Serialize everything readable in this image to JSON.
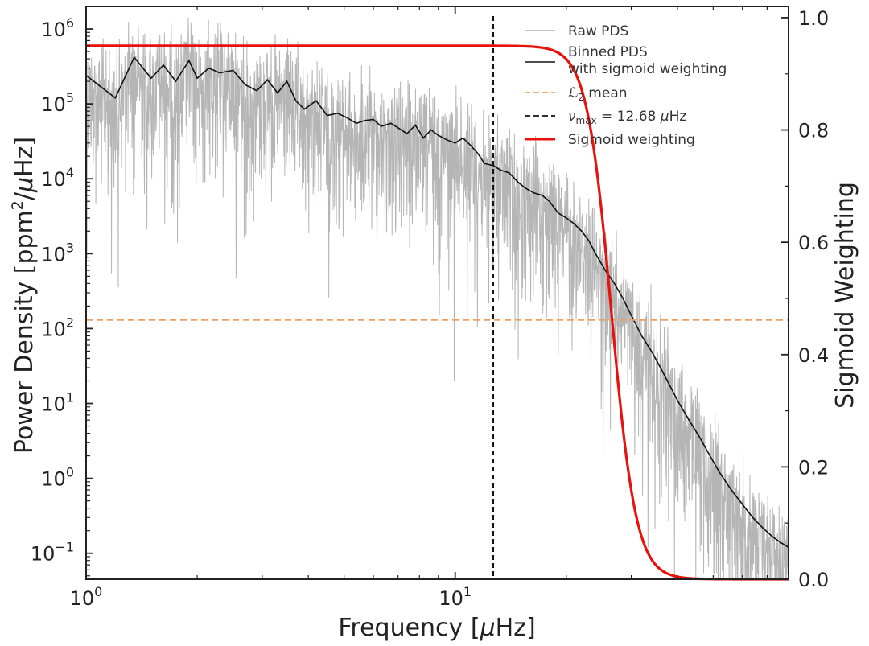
{
  "chart_data": {
    "type": "line",
    "xscale": "log",
    "yscale": "log",
    "xlabel_pre": "Frequency [",
    "mu": "μ",
    "xlabel_post": "Hz]",
    "ylabel_pre": "Power Density [ppm",
    "ylabel_sup": "2",
    "ylabel_mid": "/",
    "ylabel_post": "Hz]",
    "y2label": "Sigmoid Weighting",
    "xlim": [
      1,
      80
    ],
    "ylim": [
      0.045,
      2000000
    ],
    "y2lim": [
      0,
      1.02
    ],
    "xticks": [
      {
        "value": 1,
        "base": "10",
        "exp": "0"
      },
      {
        "value": 10,
        "base": "10",
        "exp": "1"
      }
    ],
    "yticks": [
      {
        "value": 0.1,
        "base": "10",
        "exp": "−1"
      },
      {
        "value": 1,
        "base": "10",
        "exp": "0"
      },
      {
        "value": 10,
        "base": "10",
        "exp": "1"
      },
      {
        "value": 100,
        "base": "10",
        "exp": "2"
      },
      {
        "value": 1000,
        "base": "10",
        "exp": "3"
      },
      {
        "value": 10000,
        "base": "10",
        "exp": "4"
      },
      {
        "value": 100000,
        "base": "10",
        "exp": "5"
      },
      {
        "value": 1000000,
        "base": "10",
        "exp": "6"
      }
    ],
    "y2ticks": [
      "0.0",
      "0.2",
      "0.4",
      "0.6",
      "0.8",
      "1.0"
    ],
    "l2_mean": 130,
    "numax": 12.68,
    "sigmoid": {
      "max": 0.95,
      "midpoint": 26.5,
      "steepness": 13
    },
    "binned_pds": {
      "x": [
        1.0,
        1.2,
        1.35,
        1.5,
        1.62,
        1.75,
        1.9,
        2.0,
        2.15,
        2.3,
        2.5,
        2.7,
        2.9,
        3.1,
        3.3,
        3.5,
        3.7,
        3.9,
        4.2,
        4.5,
        4.8,
        5.1,
        5.4,
        5.7,
        6.0,
        6.3,
        6.7,
        7.0,
        7.4,
        7.8,
        8.2,
        8.6,
        9.0,
        9.5,
        10.0,
        10.5,
        11.0,
        11.5,
        12.0,
        12.68,
        13.3,
        14.0,
        14.8,
        15.5,
        16.3,
        17.2,
        18.0,
        19.0,
        20.0,
        21.0,
        22.0,
        23.0,
        24.0,
        25.5,
        27.0,
        28.5,
        30.0,
        32.0,
        34.0,
        36.0,
        38.0,
        40.0,
        43.0,
        46.0,
        49.0,
        52.0,
        56.0,
        60.0,
        64.0,
        68.0,
        72.0,
        76.0,
        80.0
      ],
      "y": [
        240000,
        120000,
        420000,
        220000,
        330000,
        200000,
        380000,
        220000,
        300000,
        260000,
        280000,
        180000,
        150000,
        210000,
        140000,
        200000,
        110000,
        85000,
        110000,
        70000,
        75000,
        65000,
        55000,
        60000,
        62000,
        50000,
        55000,
        48000,
        40000,
        52000,
        35000,
        45000,
        38000,
        33000,
        30000,
        35000,
        28000,
        22000,
        16000,
        15000,
        13000,
        12000,
        9000,
        7500,
        6500,
        6000,
        5000,
        3500,
        3000,
        2500,
        2000,
        1500,
        1000,
        600,
        400,
        250,
        150,
        80,
        50,
        30,
        18,
        11,
        6,
        3.5,
        2.0,
        1.2,
        0.7,
        0.45,
        0.3,
        0.22,
        0.17,
        0.14,
        0.12
      ]
    },
    "legend": [
      {
        "label": "Raw PDS",
        "color": "#b5b5b5",
        "style": "solid"
      },
      {
        "label": "Binned PDS",
        "label2": "with sigmoid weighting",
        "color": "#111111",
        "style": "solid"
      },
      {
        "label_sym": "ℒ",
        "label_sub": "2",
        "label_rest": " mean",
        "color": "#f0a060",
        "style": "dashed"
      },
      {
        "label_sym": "ν",
        "label_sub": "max",
        "label_rest": " = 12.68 ",
        "label_mu": "μ",
        "label_unit": "Hz",
        "color": "#111111",
        "style": "dashed"
      },
      {
        "label": "Sigmoid weighting",
        "color": "#e8120c",
        "style": "solid"
      }
    ],
    "colors": {
      "raw": "#b5b5b5",
      "binned": "#111111",
      "l2": "#f0a060",
      "numax": "#111111",
      "sigmoid": "#e8120c"
    }
  }
}
